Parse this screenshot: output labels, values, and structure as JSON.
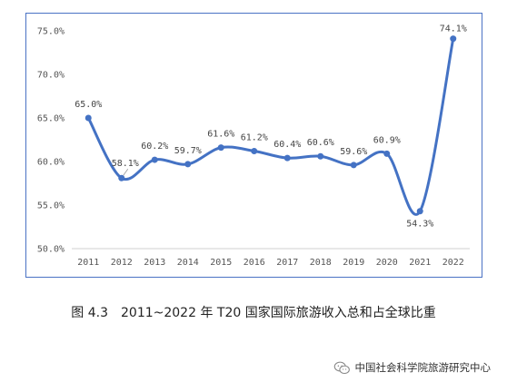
{
  "chart_data": {
    "type": "line",
    "categories": [
      "2011",
      "2012",
      "2013",
      "2014",
      "2015",
      "2016",
      "2017",
      "2018",
      "2019",
      "2020",
      "2021",
      "2022"
    ],
    "values": [
      65.0,
      58.1,
      60.2,
      59.7,
      61.6,
      61.2,
      60.4,
      60.6,
      59.6,
      60.9,
      54.3,
      74.1
    ],
    "data_labels": [
      "65.0%",
      "58.1%",
      "60.2%",
      "59.7%",
      "61.6%",
      "61.2%",
      "60.4%",
      "60.6%",
      "59.6%",
      "60.9%",
      "54.3%",
      "74.1%"
    ],
    "y_ticks": [
      "50.0%",
      "55.0%",
      "60.0%",
      "65.0%",
      "70.0%",
      "75.0%"
    ],
    "y_tick_values": [
      50,
      55,
      60,
      65,
      70,
      75
    ],
    "ylim": [
      50,
      75
    ],
    "smooth": true,
    "grid": false,
    "line_color": "#4472c4",
    "frame_color": "#4a72c4"
  },
  "caption": {
    "figure_number": "图 4.3",
    "text": "2011~2022 年 T20 国家国际旅游收入总和占全球比重"
  },
  "watermark": {
    "text": "中国社会科学院旅游研究中心",
    "icon": "wechat-icon"
  }
}
